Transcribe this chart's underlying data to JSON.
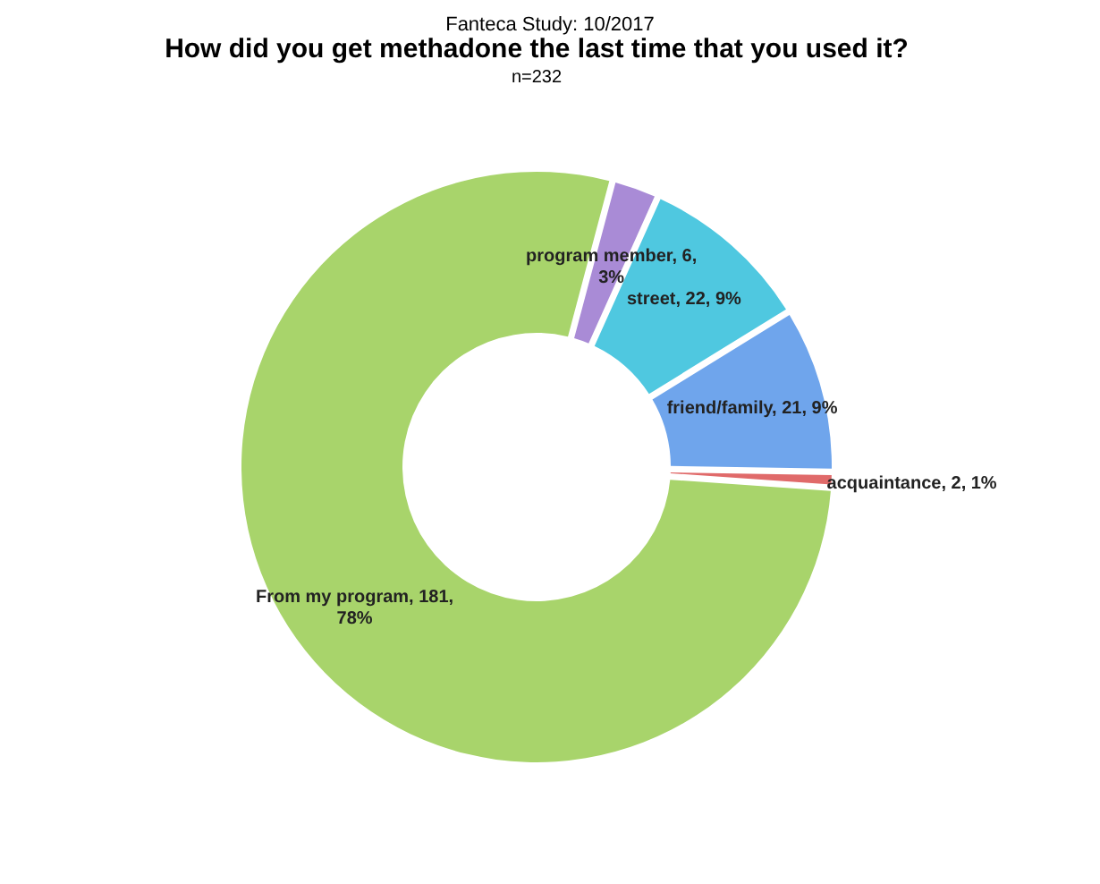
{
  "chart_data": {
    "type": "donut",
    "title": "How did you get methadone the last time that you used it?",
    "subtitle": "n=232",
    "annotations": [
      "Fanteca Study: 10/2017"
    ],
    "categories": [
      "program member",
      "street",
      "friend/family",
      "acquaintance",
      "From my program"
    ],
    "values": [
      6,
      22,
      21,
      2,
      181
    ],
    "value_labels": [
      "6, 3%",
      "22, 9%",
      "21, 9%",
      "2, 1%",
      "181, 78%"
    ],
    "colors": [
      "#a98bd6",
      "#4fc8e0",
      "#6fa5ec",
      "#e06a6a",
      "#a8d46b"
    ]
  }
}
